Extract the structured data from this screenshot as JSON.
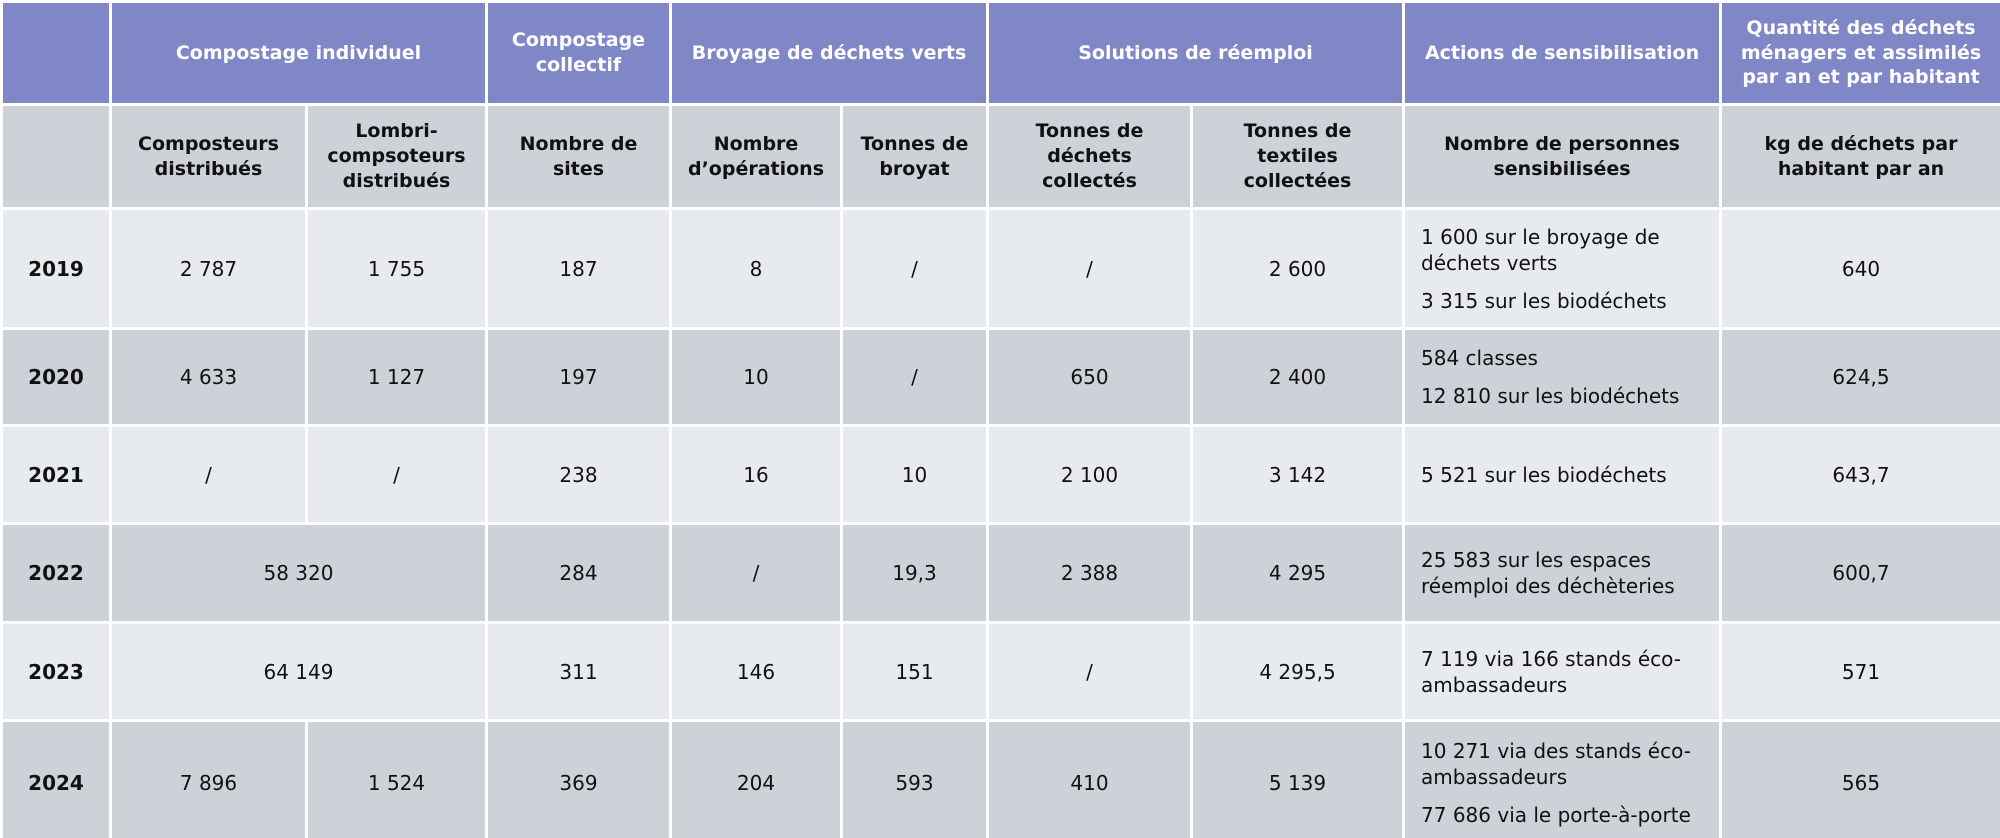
{
  "table": {
    "groups": [
      "Compostage individuel",
      "Compostage collectif",
      "Broyage de déchets verts",
      "Solutions de réemploi",
      "Actions de sensibilisation",
      "Quantité des déchets ménagers et assimilés par an et par habitant"
    ],
    "subheaders": [
      "Composteurs distribués",
      "Lombri-compsoteurs distribués",
      "Nombre de sites",
      "Nombre d’opérations",
      "Tonnes de broyat",
      "Tonnes de déchets collectés",
      "Tonnes de textiles collectées",
      "Nombre de personnes sensibilisées",
      "kg de déchets par habitant par an"
    ],
    "rows": [
      [
        "2019",
        "2 787",
        "1 755",
        "187",
        "8",
        "/",
        "/",
        "2 600",
        [
          "1 600 sur le broyage de déchets verts",
          "3 315 sur les biodéchets"
        ],
        "640"
      ],
      [
        "2020",
        "4 633",
        "1 127",
        "197",
        "10",
        "/",
        "650",
        "2 400",
        [
          "584 classes",
          "12 810 sur les biodéchets"
        ],
        "624,5"
      ],
      [
        "2021",
        "/",
        "/",
        "238",
        "16",
        "10",
        "2 100",
        "3 142",
        [
          "5 521 sur les biodéchets"
        ],
        "643,7"
      ],
      [
        "2022",
        "58 320",
        "284",
        "/",
        "19,3",
        "2 388",
        "4 295",
        [
          "25 583 sur les espaces réemploi des déchèteries"
        ],
        "600,7"
      ],
      [
        "2023",
        "64 149",
        "311",
        "146",
        "151",
        "/",
        "4 295,5",
        [
          "7 119 via 166 stands éco-ambassadeurs"
        ],
        "571"
      ],
      [
        "2024",
        "7 896",
        "1 524",
        "369",
        "204",
        "593",
        "410",
        "5 139",
        [
          "10 271 via des stands éco-ambassadeurs",
          "77 686 via le porte-à-porte"
        ],
        "565"
      ]
    ]
  }
}
